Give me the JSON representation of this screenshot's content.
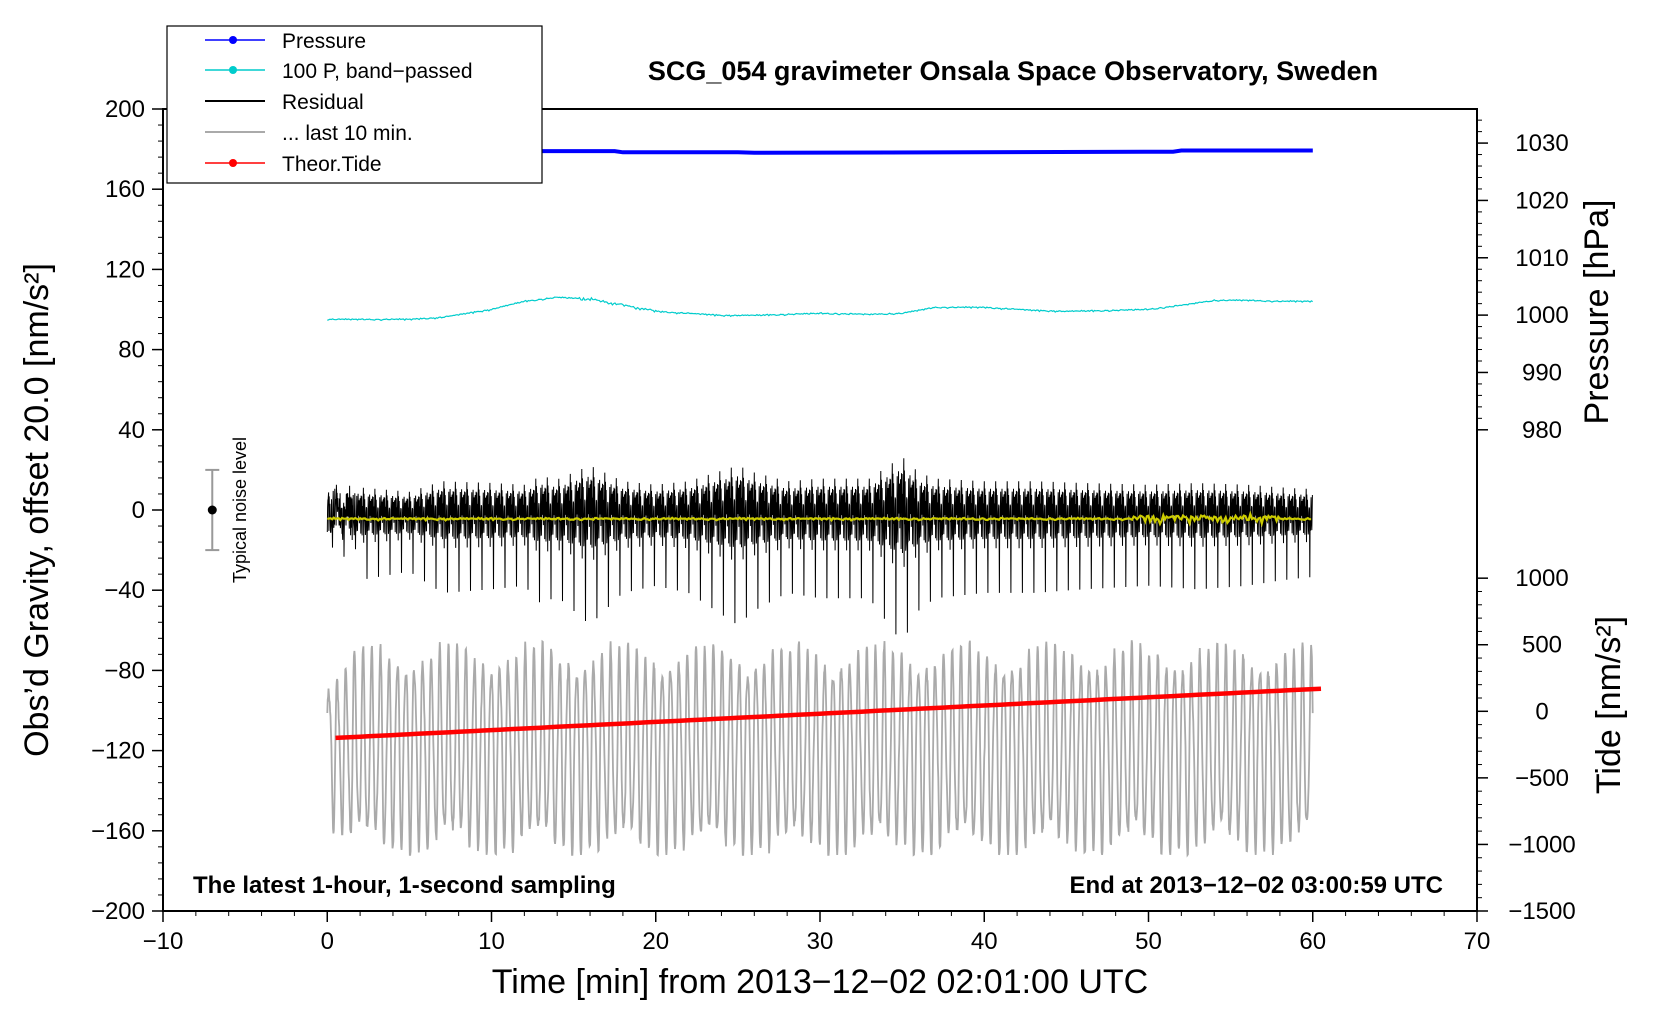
{
  "chart_data": {
    "type": "line",
    "title": "SCG_054 gravimeter Onsala Space Observatory, Sweden",
    "xlabel": "Time [min] from 2013−12−02 02:01:00 UTC",
    "ylabel": "Obs’d Gravity, offset 20.0 [nm/s²]",
    "ylabel_right_pressure": "Pressure [hPa]",
    "ylabel_right_tide": "Tide [nm/s²]",
    "xlim": [
      -10,
      70
    ],
    "ylim": [
      -200,
      200
    ],
    "xticks": [
      -10,
      0,
      10,
      20,
      30,
      40,
      50,
      60,
      70
    ],
    "xtick_labels": [
      "−10",
      "0",
      "10",
      "20",
      "30",
      "40",
      "50",
      "60",
      "70"
    ],
    "yticks": [
      -200,
      -160,
      -120,
      -80,
      -40,
      0,
      40,
      80,
      120,
      160,
      200
    ],
    "ytick_labels": [
      "−200",
      "−160",
      "−120",
      "−80",
      "−40",
      "0",
      "40",
      "80",
      "120",
      "160",
      "200"
    ],
    "pressure_axis": {
      "ticks": [
        980,
        990,
        1000,
        1010,
        1020,
        1030
      ],
      "tick_labels": [
        "980",
        "990",
        "1000",
        "1010",
        "1020",
        "1030"
      ],
      "gravity_equiv": [
        [
          980,
          40
        ],
        [
          1030,
          183
        ]
      ]
    },
    "tide_axis": {
      "ticks": [
        -1500,
        -1000,
        -500,
        0,
        500,
        1000
      ],
      "tick_labels": [
        "−1500",
        "−1000",
        "−500",
        "0",
        "500",
        "1000"
      ],
      "gravity_equiv": [
        [
          -1500,
          -200
        ],
        [
          1000,
          -34
        ]
      ]
    },
    "annotations": {
      "bottom_left": "The latest 1-hour, 1-second sampling",
      "bottom_right": "End at 2013−12−02 03:00:59 UTC",
      "noise_label": "Typical noise level",
      "noise_bar": {
        "x": -7,
        "center": 0,
        "half_range": 20
      }
    },
    "legend": {
      "position": "top-left",
      "entries": [
        {
          "label": "Pressure",
          "color": "#0000ff",
          "marker": true
        },
        {
          "label": "100 P, band−passed",
          "color": "#00cccc",
          "marker": true
        },
        {
          "label": "Residual",
          "color": "#000000",
          "marker": false
        },
        {
          "label": "... last 10 min.",
          "color": "#aaaaaa",
          "marker": false
        },
        {
          "label": "Theor.Tide",
          "color": "#ff0000",
          "marker": true
        }
      ]
    },
    "series": [
      {
        "name": "Pressure",
        "color": "#0000ff",
        "axis": "pressure_hPa",
        "x": [
          0,
          5,
          10,
          17.5,
          18,
          25,
          26,
          51.5,
          52,
          60
        ],
        "values": [
          1028.6,
          1028.6,
          1028.6,
          1028.6,
          1028.4,
          1028.4,
          1028.3,
          1028.5,
          1028.7,
          1028.7
        ]
      },
      {
        "name": "100 P, band-passed",
        "color": "#00cccc",
        "axis": "gravity",
        "x": [
          0,
          3,
          5,
          7,
          10,
          12,
          14,
          16,
          18,
          20,
          22,
          24,
          26,
          28,
          30,
          33,
          35,
          37,
          40,
          43,
          45,
          48,
          50,
          52,
          54,
          56,
          58,
          60
        ],
        "values": [
          95,
          95,
          95,
          96,
          100,
          104,
          106,
          105,
          102,
          99,
          98,
          97,
          97,
          97.5,
          98,
          97.5,
          98,
          101,
          101,
          99.5,
          99,
          99.5,
          100,
          102,
          104.5,
          104.5,
          104,
          104
        ]
      },
      {
        "name": "Residual",
        "color": "#000000",
        "axis": "gravity",
        "x": [
          0,
          60
        ],
        "envelope_x": [
          0,
          5,
          7,
          10,
          12,
          13,
          14,
          16,
          18,
          20,
          22,
          25,
          26,
          28,
          30,
          33,
          35,
          36,
          37,
          40,
          43,
          46,
          50,
          53,
          56,
          58,
          60
        ],
        "envelope": [
          38,
          30,
          42,
          40,
          38,
          48,
          44,
          60,
          42,
          38,
          42,
          60,
          52,
          42,
          45,
          45,
          70,
          52,
          45,
          42,
          42,
          40,
          38,
          40,
          38,
          35,
          33
        ],
        "center": -4
      },
      {
        "name": "Residual smoothed",
        "color": "#cccc00",
        "axis": "gravity",
        "x": [
          0,
          30,
          60
        ],
        "values": [
          -4.5,
          -4.5,
          -4.5
        ]
      },
      {
        "name": "... last 10 min.",
        "color": "#aaaaaa",
        "axis": "gravity",
        "x": [
          0,
          60
        ],
        "center": -120,
        "amplitude_range": [
          20,
          55
        ],
        "min": -172,
        "max": -65
      },
      {
        "name": "Theor.Tide",
        "color": "#ff0000",
        "axis": "tide_nm_s2",
        "x": [
          0.5,
          60.5
        ],
        "values": [
          -200,
          170
        ]
      }
    ]
  }
}
